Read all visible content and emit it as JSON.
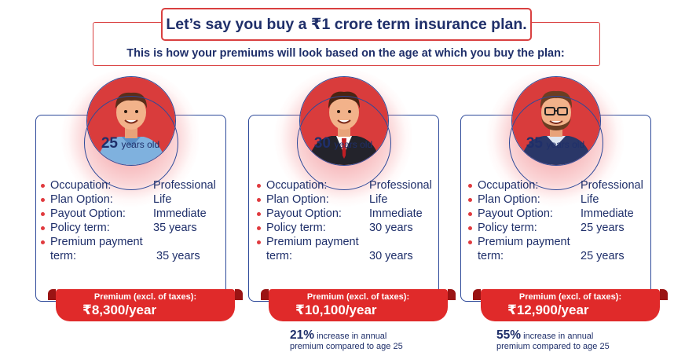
{
  "header": {
    "headline": "Let’s say you buy a ₹1 crore term insurance plan.",
    "subline": "This is how your premiums will look based on the age at which you buy the plan:"
  },
  "labels": {
    "occupation": "Occupation:",
    "plan_option": "Plan Option:",
    "payout_option": "Payout Option:",
    "policy_term": "Policy term:",
    "premium_payment_term_line1": "Premium payment",
    "premium_payment_term_line2": "term:",
    "premium_label": "Premium (excl. of taxes):",
    "age_unit": "years old"
  },
  "cards": [
    {
      "age": "25",
      "occupation": "Professional",
      "plan_option": "Life",
      "payout_option": "Immediate",
      "policy_term": "35 years",
      "premium_payment_term": "35 years",
      "premium": "₹8,300/year",
      "increase_pct": "",
      "increase_text_1": "",
      "increase_text_2": ""
    },
    {
      "age": "30",
      "occupation": "Professional",
      "plan_option": "Life",
      "payout_option": "Immediate",
      "policy_term": "30 years",
      "premium_payment_term": "30 years",
      "premium": "₹10,100/year",
      "increase_pct": "21%",
      "increase_text_1": " increase in annual",
      "increase_text_2": "premium compared to age 25"
    },
    {
      "age": "35",
      "occupation": "Professional",
      "plan_option": "Life",
      "payout_option": "Immediate",
      "policy_term": "25 years",
      "premium_payment_term": "25 years",
      "premium": "₹12,900/year",
      "increase_pct": "55%",
      "increase_text_1": " increase in annual",
      "increase_text_2": "premium compared to age 25"
    }
  ],
  "colors": {
    "accent_red": "#e02a2a",
    "navy": "#1f2f6a",
    "card_border": "#2e4a9a"
  }
}
